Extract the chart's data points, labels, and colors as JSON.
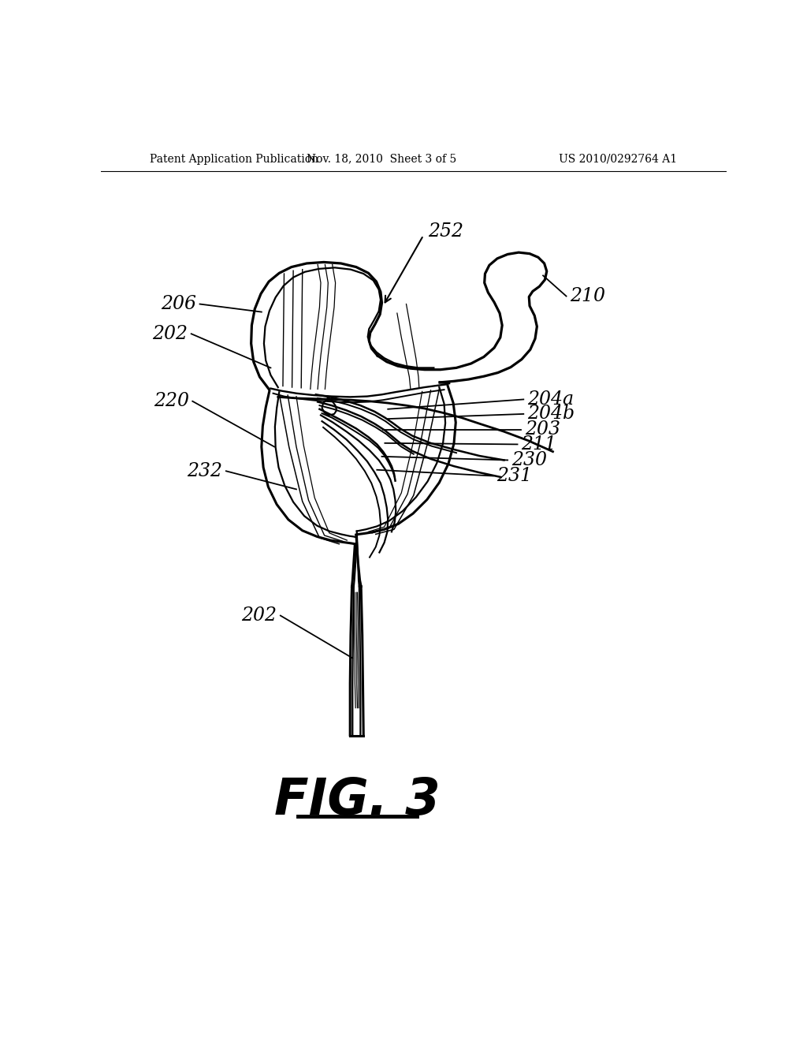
{
  "bg_color": "#ffffff",
  "header_left": "Patent Application Publication",
  "header_center": "Nov. 18, 2010  Sheet 3 of 5",
  "header_right": "US 2010/0292764 A1"
}
